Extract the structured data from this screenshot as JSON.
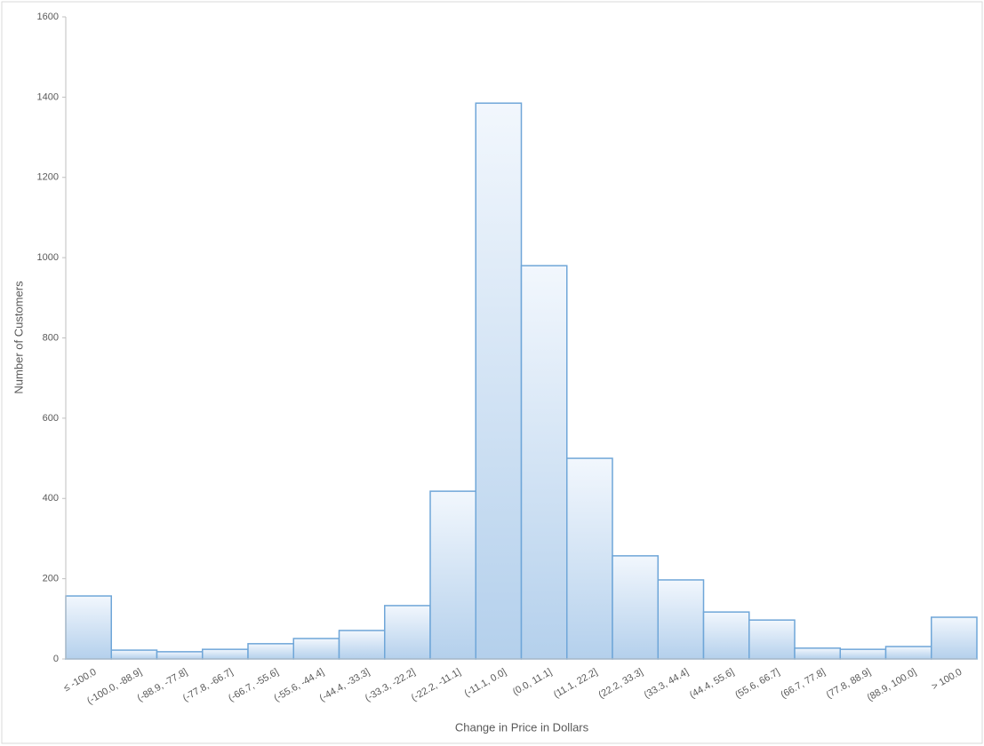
{
  "chart_data": {
    "type": "bar",
    "x_label": "Change in Price in Dollars",
    "y_label": "Number of Customers",
    "categories": [
      "≤ -100.0",
      "(-100.0, -88.9]",
      "(-88.9, -77.8]",
      "(-77.8, -66.7]",
      "(-66.7, -55.6]",
      "(-55.6, -44.4]",
      "(-44.4, -33.3]",
      "(-33.3, -22.2]",
      "(-22.2, -11.1]",
      "(-11.1, 0.0]",
      "(0.0, 11.1]",
      "(11.1, 22.2]",
      "(22.2, 33.3]",
      "(33.3, 44.4]",
      "(44.4, 55.6]",
      "(55.6, 66.7]",
      "(66.7, 77.8]",
      "(77.8, 88.9]",
      "(88.9, 100.0]",
      "> 100.0"
    ],
    "values": [
      157,
      22,
      18,
      24,
      38,
      51,
      71,
      133,
      418,
      1385,
      980,
      500,
      257,
      197,
      117,
      97,
      27,
      24,
      31,
      104
    ],
    "color": "#b4d0ec",
    "edgecolor": "#6fa6d8",
    "ylim": [
      0,
      1600
    ],
    "yticks": [
      0,
      200,
      400,
      600,
      800,
      1000,
      1200,
      1400,
      1600
    ],
    "grid": false
  }
}
